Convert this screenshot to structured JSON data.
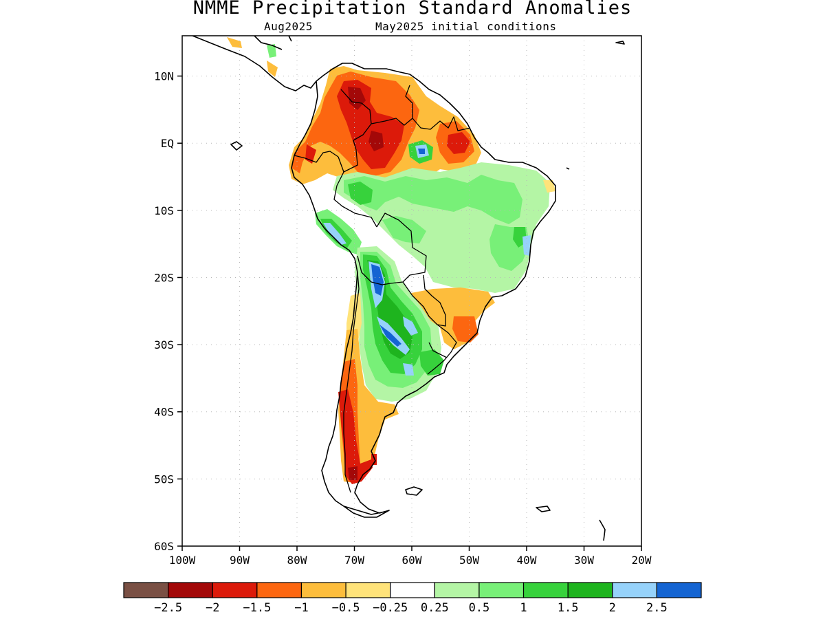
{
  "title": "NMME Precipitation Standard Anomalies",
  "subtitle_left": "Aug2025",
  "subtitle_right": "May2025 initial conditions",
  "lat_ticks": [
    "10N",
    "EQ",
    "10S",
    "20S",
    "30S",
    "40S",
    "50S",
    "60S"
  ],
  "lon_ticks": [
    "100W",
    "90W",
    "80W",
    "70W",
    "60W",
    "50W",
    "40W",
    "30W",
    "20W"
  ],
  "colorbar": {
    "colors": [
      "#7a5044",
      "#a30808",
      "#dc1a0a",
      "#fc6610",
      "#fdbd3c",
      "#ffe37a",
      "#ffffff",
      "#b4f5a5",
      "#78f078",
      "#37d23c",
      "#1eb41e",
      "#96d2fa",
      "#1464d2"
    ],
    "labels": [
      "−2.5",
      "−2",
      "−1.5",
      "−1",
      "−0.5",
      "−0.25",
      "0.25",
      "0.5",
      "1",
      "1.5",
      "2",
      "2.5"
    ]
  },
  "colors": {
    "dry_strong": "#a30808",
    "dry": "#dc1a0a",
    "dry_mod": "#fc6610",
    "dry_light": "#fdbd3c",
    "dry_slight": "#ffe37a",
    "wet_slight": "#b4f5a5",
    "wet_light": "#78f078",
    "wet_mod": "#37d23c",
    "wet": "#1eb41e",
    "wet_strong": "#96d2fa",
    "wet_extreme": "#1464d2"
  }
}
